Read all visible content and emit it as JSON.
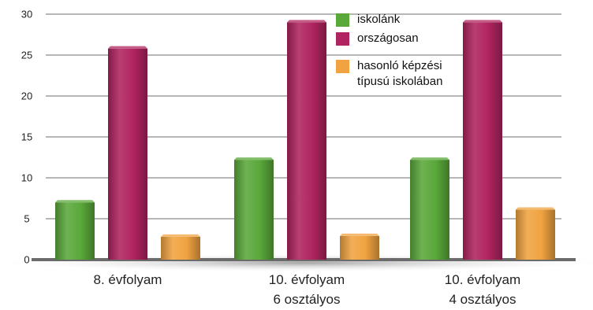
{
  "chart_data": {
    "type": "bar",
    "title": "",
    "xlabel": "",
    "ylabel": "",
    "ylim": [
      0,
      30
    ],
    "yticks": [
      0,
      5,
      10,
      15,
      20,
      25,
      30
    ],
    "grid": true,
    "legend_position": "top-right",
    "categories": [
      [
        "8. évfolyam"
      ],
      [
        "10. évfolyam",
        "6 osztályos"
      ],
      [
        "10. évfolyam",
        "4 osztályos"
      ]
    ],
    "series": [
      {
        "name": [
          "iskolánk"
        ],
        "color": "#5aa83a",
        "values": [
          7,
          12.2,
          12.2
        ]
      },
      {
        "name": [
          "országosan"
        ],
        "color": "#b0245f",
        "values": [
          25.8,
          29,
          29
        ]
      },
      {
        "name": [
          "hasonló képzési",
          "típusú iskolában"
        ],
        "color": "#f0a340",
        "values": [
          2.8,
          2.9,
          6.1
        ]
      }
    ]
  }
}
